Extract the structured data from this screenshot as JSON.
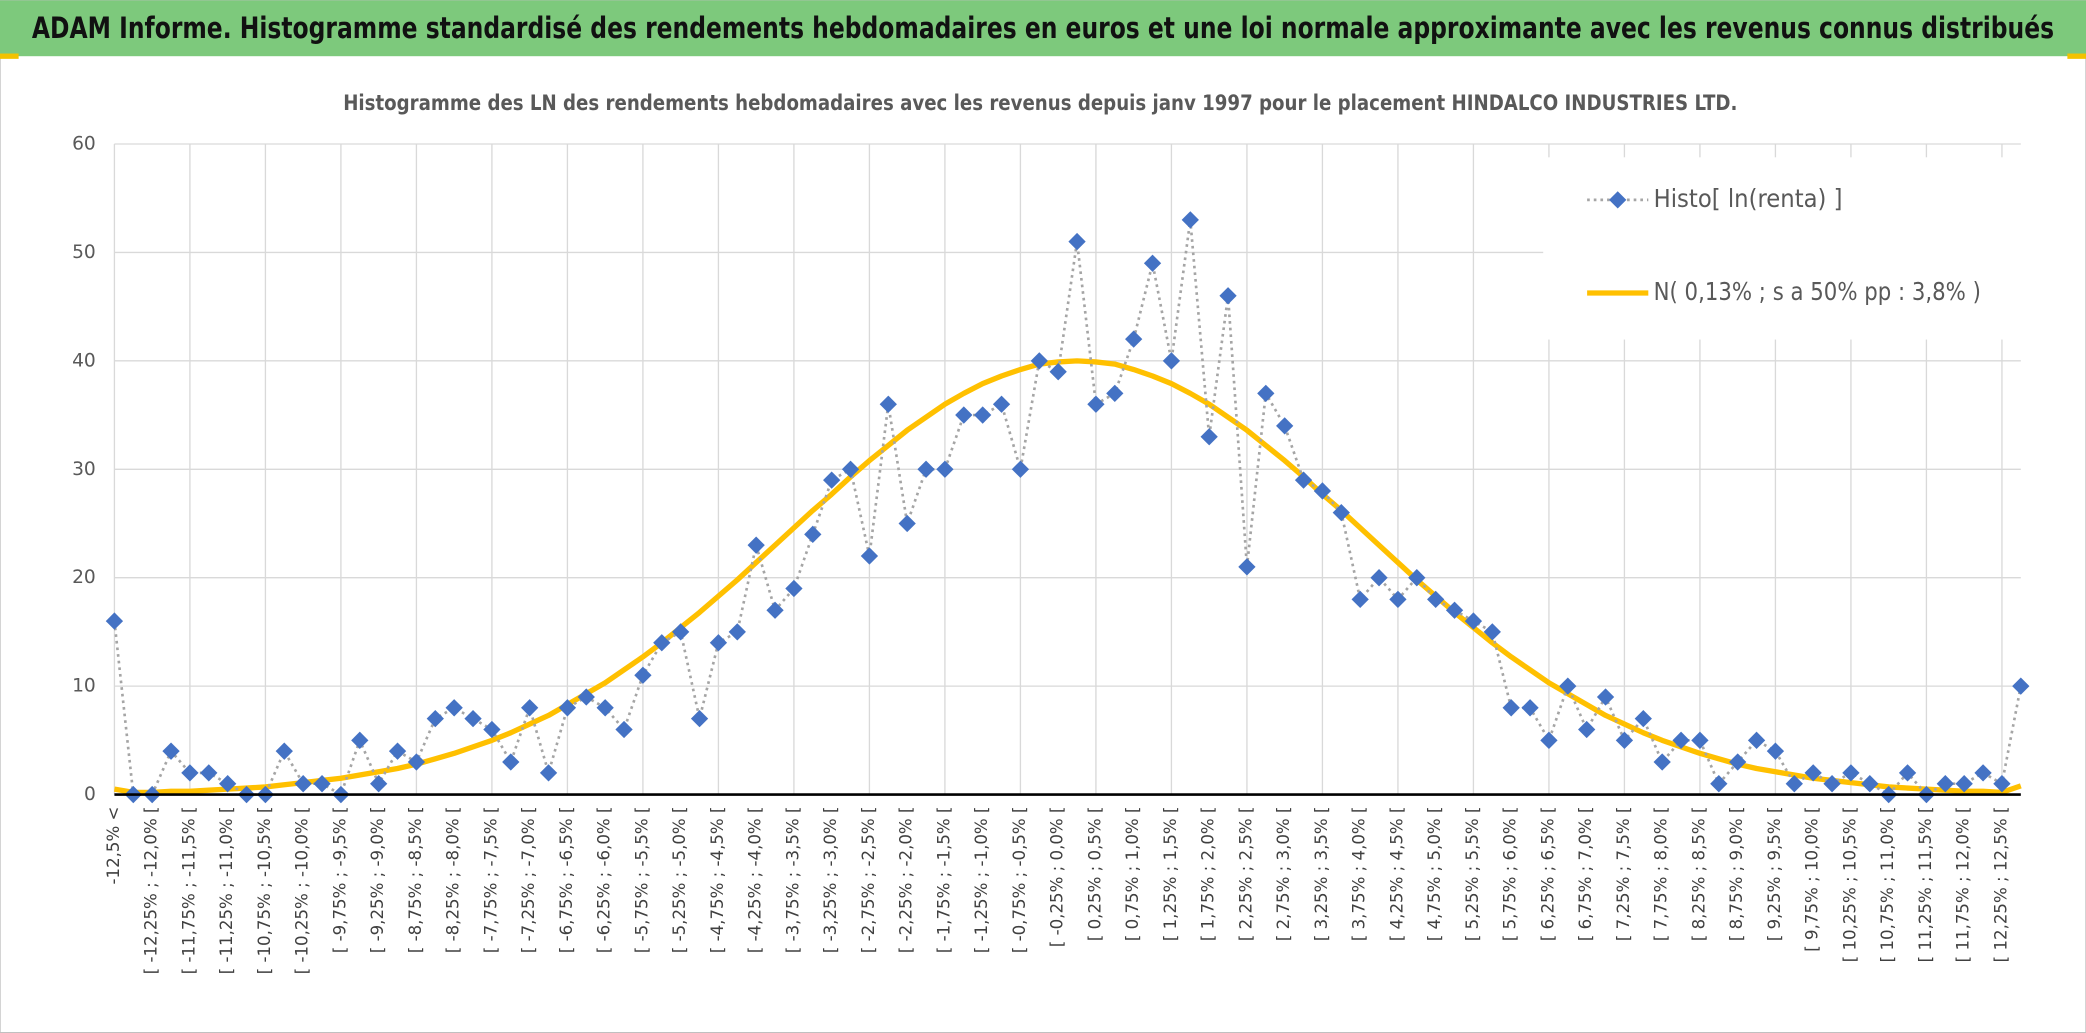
{
  "header": {
    "title": "ADAM Informe. Histogramme standardisé des rendements hebdomadaires en euros et une loi normale approximante avec les revenus connus distribués"
  },
  "chart_data": {
    "type": "line",
    "title": "Histogramme des LN des rendements hebdomadaires avec les revenus depuis janv 1997 pour le placement HINDALCO INDUSTRIES LTD.",
    "categories": [
      "-12,5% <",
      null,
      "[ -12,25% ; -12,0% [",
      null,
      "[ -11,75% ; -11,5% [",
      null,
      "[ -11,25% ; -11,0% [",
      null,
      "[ -10,75% ; -10,5% [",
      null,
      "[ -10,25% ; -10,0% [",
      null,
      "[ -9,75% ; -9,5% [",
      null,
      "[ -9,25% ; -9,0% [",
      null,
      "[ -8,75% ; -8,5% [",
      null,
      "[ -8,25% ; -8,0% [",
      null,
      "[ -7,75% ; -7,5% [",
      null,
      "[ -7,25% ; -7,0% [",
      null,
      "[ -6,75% ; -6,5% [",
      null,
      "[ -6,25% ; -6,0% [",
      null,
      "[ -5,75% ; -5,5% [",
      null,
      "[ -5,25% ; -5,0% [",
      null,
      "[ -4,75% ; -4,5% [",
      null,
      "[ -4,25% ; -4,0% [",
      null,
      "[ -3,75% ; -3,5% [",
      null,
      "[ -3,25% ; -3,0% [",
      null,
      "[ -2,75% ; -2,5% [",
      null,
      "[ -2,25% ; -2,0% [",
      null,
      "[ -1,75% ; -1,5% [",
      null,
      "[ -1,25% ; -1,0% [",
      null,
      "[ -0,75% ; -0,5% [",
      null,
      "[ -0,25% ; 0,0% [",
      null,
      "[ 0,25% ; 0,5% [",
      null,
      "[ 0,75% ; 1,0% [",
      null,
      "[ 1,25% ; 1,5% [",
      null,
      "[ 1,75% ; 2,0% [",
      null,
      "[ 2,25% ; 2,5% [",
      null,
      "[ 2,75% ; 3,0% [",
      null,
      "[ 3,25% ; 3,5% [",
      null,
      "[ 3,75% ; 4,0% [",
      null,
      "[ 4,25% ; 4,5% [",
      null,
      "[ 4,75% ; 5,0% [",
      null,
      "[ 5,25% ; 5,5% [",
      null,
      "[ 5,75% ; 6,0% [",
      null,
      "[ 6,25% ; 6,5% [",
      null,
      "[ 6,75% ; 7,0% [",
      null,
      "[ 7,25% ; 7,5% [",
      null,
      "[ 7,75% ; 8,0% [",
      null,
      "[ 8,25% ; 8,5% [",
      null,
      "[ 8,75% ; 9,0% [",
      null,
      "[ 9,25% ; 9,5% [",
      null,
      "[ 9,75% ; 10,0% [",
      null,
      "[ 10,25% ; 10,5% [",
      null,
      "[ 10,75% ; 11,0% [",
      null,
      "[ 11,25% ; 11,5% [",
      null,
      "[ 11,75% ; 12,0% [",
      null,
      "[ 12,25% ; 12,5% [",
      null
    ],
    "series": [
      {
        "name": "Histo[ ln(renta) ]",
        "color": "#4472c4",
        "line_color": "#a5a5a5",
        "line": "dotted",
        "marker": "diamond",
        "values": [
          16,
          0,
          0,
          4,
          2,
          2,
          1,
          0,
          0,
          4,
          1,
          1,
          0,
          5,
          1,
          4,
          3,
          7,
          8,
          7,
          6,
          3,
          8,
          2,
          8,
          9,
          8,
          6,
          11,
          14,
          15,
          7,
          14,
          15,
          23,
          17,
          19,
          24,
          29,
          30,
          22,
          36,
          25,
          30,
          30,
          35,
          35,
          36,
          30,
          40,
          39,
          51,
          36,
          37,
          42,
          49,
          40,
          53,
          33,
          46,
          21,
          37,
          34,
          29,
          28,
          26,
          18,
          20,
          18,
          20,
          18,
          17,
          16,
          15,
          8,
          8,
          5,
          10,
          6,
          9,
          5,
          7,
          3,
          5,
          5,
          1,
          3,
          5,
          4,
          1,
          2,
          1,
          2,
          1,
          0,
          2,
          0,
          1,
          1,
          2,
          1,
          10
        ]
      },
      {
        "name": "N( 0,13% ; s a 50% pp : 3,8% )",
        "color": "#ffc000",
        "line": "solid",
        "values": [
          0.5,
          0.2,
          0.2,
          0.3,
          0.3,
          0.4,
          0.5,
          0.6,
          0.7,
          0.9,
          1.1,
          1.3,
          1.5,
          1.8,
          2.1,
          2.4,
          2.8,
          3.3,
          3.8,
          4.4,
          5.0,
          5.7,
          6.5,
          7.3,
          8.3,
          9.3,
          10.3,
          11.5,
          12.7,
          14.0,
          15.4,
          16.8,
          18.3,
          19.8,
          21.4,
          23.0,
          24.6,
          26.2,
          27.7,
          29.3,
          30.8,
          32.2,
          33.6,
          34.8,
          36.0,
          37.0,
          37.9,
          38.6,
          39.2,
          39.7,
          39.9,
          40.0,
          39.9,
          39.7,
          39.2,
          38.6,
          37.9,
          37.0,
          36.0,
          34.8,
          33.6,
          32.2,
          30.8,
          29.3,
          27.7,
          26.2,
          24.6,
          23.0,
          21.4,
          19.8,
          18.3,
          16.8,
          15.4,
          14.0,
          12.7,
          11.5,
          10.3,
          9.3,
          8.3,
          7.3,
          6.5,
          5.7,
          5.0,
          4.4,
          3.8,
          3.3,
          2.8,
          2.4,
          2.1,
          1.8,
          1.5,
          1.3,
          1.1,
          0.9,
          0.7,
          0.6,
          0.5,
          0.4,
          0.3,
          0.3,
          0.2,
          0.8
        ]
      }
    ],
    "ylim": [
      0,
      60
    ],
    "yticks": [
      0,
      10,
      20,
      30,
      40,
      50,
      60
    ],
    "grid": true,
    "legend": "top-right"
  }
}
